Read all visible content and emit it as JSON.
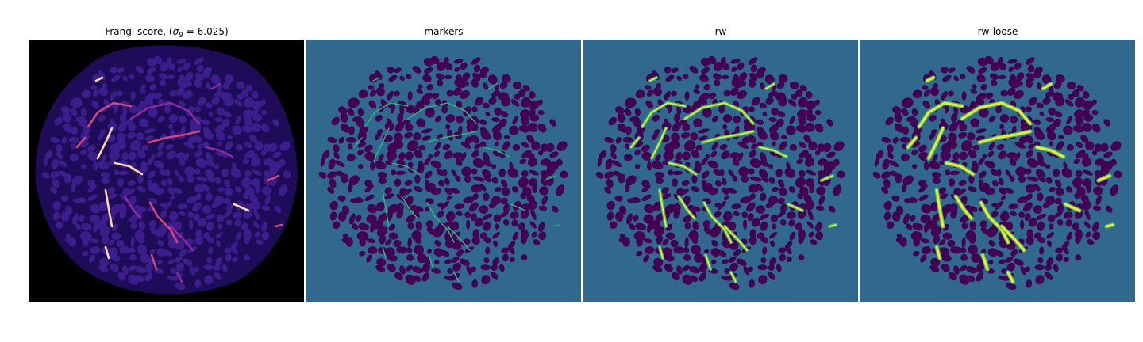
{
  "figure": {
    "panels": [
      {
        "title_text": "Frangi score, (",
        "title_sigma": "σ",
        "title_sub": "9",
        "title_rest": " = 6.025)"
      },
      {
        "title_text": "markers"
      },
      {
        "title_text": "rw"
      },
      {
        "title_text": "rw-loose"
      }
    ]
  },
  "colors": {
    "frangi_background": "#000000",
    "frangi_texture": "#1f0c58",
    "frangi_blob": "#3b1e8c",
    "frangi_vessel_low": "#8c29a5",
    "frangi_vessel_mid": "#d6457e",
    "frangi_vessel_high": "#fcd9a6",
    "label_background": "#31688e",
    "label_blob": "#440154",
    "label_marker": "#35b779",
    "label_vessel": "#fde725"
  }
}
